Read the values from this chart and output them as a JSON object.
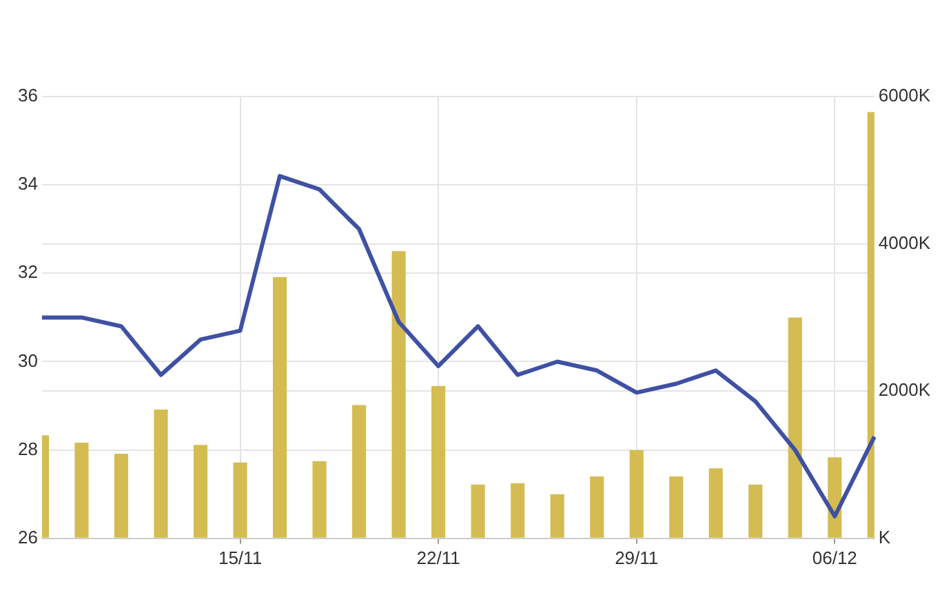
{
  "chart_data": {
    "type": "line",
    "categories": [
      null,
      null,
      null,
      null,
      null,
      "15/11",
      null,
      null,
      null,
      null,
      "22/11",
      null,
      null,
      null,
      null,
      "29/11",
      null,
      null,
      null,
      null,
      "06/12",
      null
    ],
    "series": [
      {
        "type": "bar",
        "axis": "y2",
        "color": "#d4bc52",
        "values": [
          1400,
          1300,
          1150,
          1750,
          1270,
          1030,
          3550,
          1050,
          1810,
          3900,
          2070,
          730,
          750,
          600,
          840,
          1200,
          840,
          950,
          730,
          3000,
          1100,
          5790
        ]
      },
      {
        "color": "#3f51a3",
        "values": [
          31.0,
          31.0,
          30.8,
          29.7,
          30.5,
          30.7,
          34.2,
          33.9,
          33.0,
          30.9,
          29.9,
          30.8,
          29.7,
          30.0,
          29.8,
          29.3,
          29.5,
          29.8,
          29.1,
          28.0,
          26.5,
          28.3
        ]
      }
    ],
    "ylim": [
      26,
      36
    ],
    "yticks": [
      26,
      28,
      30,
      32,
      34,
      36
    ],
    "y2lim": [
      0,
      6000
    ],
    "y2ticks": [
      {
        "value": 0,
        "label": "K"
      },
      {
        "value": 2000,
        "label": "2000K"
      },
      {
        "value": 4000,
        "label": "4000K"
      },
      {
        "value": 6000,
        "label": "6000K"
      }
    ],
    "grid": true,
    "marker": "none",
    "line_style": "solid"
  }
}
